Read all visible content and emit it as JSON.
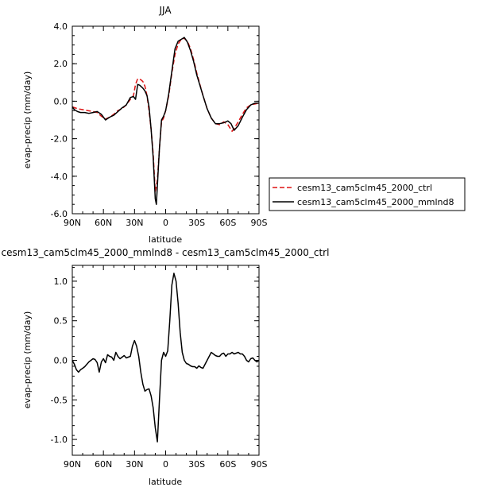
{
  "chart_data": [
    {
      "type": "line",
      "title": "JJA",
      "xlabel": "latitude",
      "ylabel": "evap-precip (mm/day)",
      "xlim": [
        -90,
        90
      ],
      "x_direction": "north-to-south",
      "ylim": [
        -6,
        4
      ],
      "x_ticks": [
        -90,
        -60,
        -30,
        0,
        30,
        60,
        90
      ],
      "x_tick_labels": [
        "90N",
        "60N",
        "30N",
        "0",
        "30S",
        "60S",
        "90S"
      ],
      "y_ticks": [
        -6,
        -4,
        -2,
        0,
        2,
        4
      ],
      "y_tick_labels": [
        "-6.0",
        "-4.0",
        "-2.0",
        "0.0",
        "2.0",
        "4.0"
      ],
      "grid": false,
      "legend_position": "right, outside plot",
      "series": [
        {
          "name": "cesm13_cam5clm45_2000_ctrl",
          "color": "#dd1111",
          "dash": "dashed",
          "x": [
            -90,
            -85,
            -80,
            -75,
            -70,
            -66,
            -62,
            -58,
            -54,
            -50,
            -46,
            -42,
            -38,
            -34,
            -31,
            -29,
            -27,
            -24,
            -22,
            -20,
            -18,
            -16,
            -14,
            -12,
            -10,
            -8,
            -6,
            -4,
            -2,
            0,
            3,
            6,
            9,
            12,
            15,
            18,
            21,
            24,
            27,
            30,
            33,
            36,
            40,
            44,
            48,
            52,
            56,
            60,
            64,
            66,
            70,
            74,
            78,
            82,
            86,
            90
          ],
          "y": [
            -0.3,
            -0.4,
            -0.45,
            -0.5,
            -0.55,
            -0.6,
            -0.8,
            -0.95,
            -0.85,
            -0.7,
            -0.5,
            -0.4,
            -0.2,
            0.1,
            0.3,
            0.9,
            1.2,
            1.15,
            1.05,
            0.8,
            0.3,
            -0.5,
            -1.5,
            -2.8,
            -4.8,
            -4.2,
            -2.5,
            -1.1,
            -0.9,
            -0.5,
            0.3,
            1.5,
            2.5,
            3.05,
            3.3,
            3.35,
            3.2,
            2.8,
            2.2,
            1.5,
            0.9,
            0.3,
            -0.4,
            -0.9,
            -1.2,
            -1.25,
            -1.1,
            -1.25,
            -1.6,
            -1.45,
            -1.1,
            -0.7,
            -0.35,
            -0.2,
            -0.15,
            -0.1
          ]
        },
        {
          "name": "cesm13_cam5clm45_2000_mmlnd8",
          "color": "#000000",
          "dash": "solid",
          "x": [
            -90,
            -88,
            -85,
            -82,
            -78,
            -74,
            -70,
            -66,
            -62,
            -58,
            -54,
            -50,
            -46,
            -42,
            -38,
            -34,
            -31,
            -29,
            -27,
            -25,
            -22,
            -20,
            -18,
            -16,
            -14,
            -12,
            -10,
            -9,
            -8,
            -6,
            -4,
            -2,
            0,
            3,
            6,
            9,
            12,
            15,
            18,
            21,
            24,
            27,
            30,
            33,
            36,
            40,
            44,
            48,
            52,
            56,
            60,
            63,
            66,
            70,
            74,
            78,
            82,
            86,
            90
          ],
          "y": [
            -0.3,
            -0.45,
            -0.55,
            -0.6,
            -0.6,
            -0.65,
            -0.6,
            -0.55,
            -0.7,
            -1.0,
            -0.85,
            -0.75,
            -0.55,
            -0.35,
            -0.2,
            0.2,
            0.25,
            0.1,
            0.9,
            0.85,
            0.7,
            0.55,
            0.3,
            -0.3,
            -1.5,
            -3.0,
            -5.2,
            -5.5,
            -4.5,
            -2.5,
            -1.0,
            -0.8,
            -0.5,
            0.4,
            1.6,
            2.8,
            3.2,
            3.3,
            3.4,
            3.15,
            2.7,
            2.1,
            1.4,
            0.85,
            0.3,
            -0.4,
            -0.9,
            -1.2,
            -1.2,
            -1.15,
            -1.05,
            -1.2,
            -1.55,
            -1.3,
            -0.85,
            -0.45,
            -0.2,
            -0.1,
            -0.1
          ]
        }
      ]
    },
    {
      "type": "line",
      "title": "cesm13_cam5clm45_2000_mmlnd8 - cesm13_cam5clm45_2000_ctrl",
      "xlabel": "latitude",
      "ylabel": "evap-precip (mm/day)",
      "xlim": [
        -90,
        90
      ],
      "x_direction": "north-to-south",
      "ylim": [
        -1.2,
        1.2
      ],
      "x_ticks": [
        -90,
        -60,
        -30,
        0,
        30,
        60,
        90
      ],
      "x_tick_labels": [
        "90N",
        "60N",
        "30N",
        "0",
        "30S",
        "60S",
        "90S"
      ],
      "y_ticks": [
        -1.0,
        -0.5,
        0.0,
        0.5,
        1.0
      ],
      "y_tick_labels": [
        "-1.0",
        "-0.5",
        "0.0",
        "0.5",
        "1.0"
      ],
      "grid": false,
      "series": [
        {
          "color": "#000000",
          "dash": "solid",
          "x": [
            -90,
            -88,
            -86,
            -84,
            -82,
            -80,
            -78,
            -76,
            -74,
            -72,
            -70,
            -68,
            -66,
            -64,
            -62,
            -60,
            -58,
            -56,
            -54,
            -52,
            -50,
            -48,
            -46,
            -44,
            -42,
            -40,
            -38,
            -36,
            -34,
            -32,
            -30,
            -28,
            -26,
            -24,
            -22,
            -20,
            -18,
            -16,
            -14,
            -12,
            -10,
            -8,
            -6,
            -4,
            -2,
            0,
            2,
            4,
            6,
            8,
            10,
            12,
            14,
            16,
            18,
            20,
            22,
            24,
            26,
            28,
            30,
            32,
            34,
            36,
            38,
            40,
            42,
            44,
            46,
            48,
            50,
            52,
            54,
            56,
            58,
            60,
            62,
            64,
            66,
            68,
            70,
            72,
            74,
            76,
            78,
            80,
            82,
            84,
            86,
            88,
            90
          ],
          "y": [
            0.0,
            -0.05,
            -0.12,
            -0.15,
            -0.12,
            -0.1,
            -0.08,
            -0.05,
            -0.02,
            0.0,
            0.02,
            0.01,
            -0.03,
            -0.15,
            -0.02,
            0.02,
            -0.03,
            0.07,
            0.05,
            0.04,
            0.0,
            0.1,
            0.05,
            0.02,
            0.04,
            0.06,
            0.03,
            0.04,
            0.05,
            0.18,
            0.25,
            0.18,
            0.05,
            -0.15,
            -0.3,
            -0.39,
            -0.37,
            -0.36,
            -0.45,
            -0.6,
            -0.85,
            -1.03,
            -0.5,
            0.0,
            0.1,
            0.05,
            0.12,
            0.5,
            0.95,
            1.1,
            1.0,
            0.72,
            0.35,
            0.1,
            0.0,
            -0.04,
            -0.05,
            -0.07,
            -0.08,
            -0.08,
            -0.1,
            -0.07,
            -0.09,
            -0.1,
            -0.05,
            0.0,
            0.05,
            0.1,
            0.08,
            0.06,
            0.05,
            0.05,
            0.08,
            0.09,
            0.05,
            0.08,
            0.08,
            0.1,
            0.08,
            0.09,
            0.1,
            0.08,
            0.08,
            0.05,
            0.0,
            -0.02,
            0.02,
            0.03,
            0.0,
            -0.02,
            0.0
          ]
        }
      ]
    }
  ]
}
